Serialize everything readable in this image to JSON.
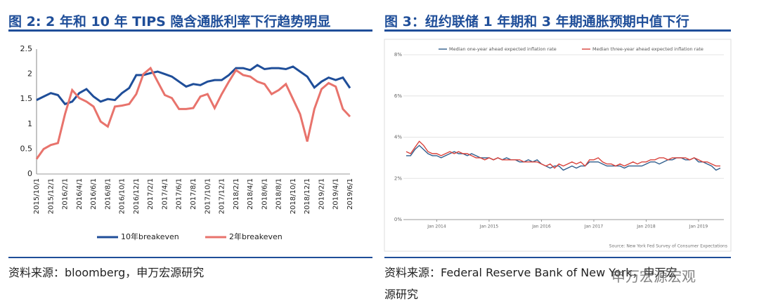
{
  "figures": [
    {
      "title": "图 2: 2 年和 10 年 TIPS 隐含通胀利率下行趋势明显",
      "source": "资料来源：bloomberg，申万宏源研究"
    },
    {
      "title": "图 3：纽约联储 1 年期和 3 年期通胀预期中值下行",
      "source": "资料来源：Federal Reserve Bank of New York，申万宏源研究"
    }
  ],
  "watermark": "申万宏源宏观",
  "chart_data": [
    {
      "type": "line",
      "legend": "bottom",
      "grid": false,
      "categories": [
        "2015/10/1",
        null,
        "2015/12/1",
        null,
        "2016/2/1",
        null,
        "2016/4/1",
        null,
        "2016/6/1",
        null,
        "2016/8/1",
        null,
        "2016/10/1",
        null,
        "2016/12/1",
        null,
        "2017/2/1",
        null,
        "2017/4/1",
        null,
        "2017/6/1",
        null,
        "2017/8/1",
        null,
        "2017/10/1",
        null,
        "2017/12/1",
        null,
        "2018/2/1",
        null,
        "2018/4/1",
        null,
        "2018/6/1",
        null,
        "2018/8/1",
        null,
        "2018/10/1",
        null,
        "2018/12/1",
        null,
        "2019/2/1",
        null,
        "2019/4/1",
        null,
        "2019/6/1"
      ],
      "series": [
        {
          "name": "10年breakeven",
          "color": "#1f4e99",
          "values": [
            1.48,
            1.55,
            1.62,
            1.58,
            1.4,
            1.45,
            1.62,
            1.7,
            1.55,
            1.45,
            1.5,
            1.48,
            1.62,
            1.72,
            1.98,
            1.98,
            2.02,
            2.05,
            2.0,
            1.95,
            1.85,
            1.75,
            1.8,
            1.78,
            1.85,
            1.88,
            1.88,
            1.98,
            2.12,
            2.12,
            2.08,
            2.18,
            2.1,
            2.12,
            2.12,
            2.1,
            2.15,
            2.05,
            1.95,
            1.73,
            1.85,
            1.93,
            1.88,
            1.93,
            1.72
          ]
        },
        {
          "name": "2年breakeven",
          "color": "#e8736c",
          "values": [
            0.3,
            0.5,
            0.58,
            0.62,
            1.2,
            1.68,
            1.52,
            1.45,
            1.35,
            1.05,
            0.95,
            1.35,
            1.37,
            1.4,
            1.6,
            2.0,
            2.12,
            1.85,
            1.58,
            1.52,
            1.3,
            1.3,
            1.32,
            1.55,
            1.6,
            1.32,
            1.6,
            1.85,
            2.08,
            1.98,
            1.95,
            1.85,
            1.8,
            1.6,
            1.68,
            1.8,
            1.5,
            1.2,
            0.65,
            1.3,
            1.7,
            1.82,
            1.75,
            1.3,
            1.15
          ]
        }
      ],
      "ylim": [
        0,
        2.5
      ],
      "yticks": [
        0,
        0.5,
        1,
        1.5,
        2,
        2.5
      ]
    },
    {
      "type": "line",
      "legend": "top",
      "grid": true,
      "source": "Source: New York Fed Survey of Consumer Expectations",
      "categories": [
        null,
        null,
        null,
        null,
        null,
        null,
        null,
        "Jan 2014",
        null,
        null,
        null,
        null,
        null,
        null,
        null,
        null,
        null,
        null,
        null,
        "Jan 2015",
        null,
        null,
        null,
        null,
        null,
        null,
        null,
        null,
        null,
        null,
        null,
        "Jan 2016",
        null,
        null,
        null,
        null,
        null,
        null,
        null,
        null,
        null,
        null,
        null,
        "Jan 2017",
        null,
        null,
        null,
        null,
        null,
        null,
        null,
        null,
        null,
        null,
        null,
        "Jan 2018",
        null,
        null,
        null,
        null,
        null,
        null,
        null,
        null,
        null,
        null,
        null,
        "Jan 2019",
        null,
        null,
        null,
        null,
        null
      ],
      "series": [
        {
          "name": "Median one-year ahead expected inflation rate",
          "color": "#2f5d8c",
          "values": [
            3.1,
            3.1,
            3.4,
            3.6,
            3.4,
            3.2,
            3.1,
            3.1,
            3.0,
            3.1,
            3.2,
            3.3,
            3.2,
            3.2,
            3.1,
            3.2,
            3.1,
            3.0,
            3.0,
            3.0,
            2.9,
            3.0,
            2.9,
            3.0,
            2.9,
            2.9,
            2.8,
            2.8,
            2.9,
            2.8,
            2.9,
            2.7,
            2.6,
            2.5,
            2.6,
            2.6,
            2.4,
            2.5,
            2.6,
            2.5,
            2.6,
            2.6,
            2.8,
            2.8,
            2.8,
            2.7,
            2.6,
            2.6,
            2.6,
            2.6,
            2.5,
            2.6,
            2.6,
            2.6,
            2.6,
            2.7,
            2.8,
            2.8,
            2.7,
            2.8,
            2.9,
            2.9,
            3.0,
            3.0,
            2.9,
            2.9,
            3.0,
            2.8,
            2.8,
            2.7,
            2.6,
            2.4,
            2.5
          ]
        },
        {
          "name": "Median three-year ahead expected inflation rate",
          "color": "#d9413a",
          "values": [
            3.3,
            3.2,
            3.5,
            3.8,
            3.6,
            3.3,
            3.2,
            3.2,
            3.1,
            3.2,
            3.3,
            3.2,
            3.3,
            3.2,
            3.2,
            3.1,
            3.0,
            3.0,
            2.9,
            3.0,
            2.9,
            3.0,
            2.9,
            2.9,
            2.9,
            2.9,
            2.9,
            2.8,
            2.8,
            2.8,
            2.8,
            2.7,
            2.6,
            2.7,
            2.5,
            2.7,
            2.6,
            2.7,
            2.8,
            2.7,
            2.8,
            2.6,
            2.9,
            2.9,
            3.0,
            2.8,
            2.7,
            2.7,
            2.6,
            2.7,
            2.6,
            2.7,
            2.8,
            2.7,
            2.8,
            2.8,
            2.9,
            2.9,
            3.0,
            3.0,
            2.9,
            3.0,
            3.0,
            3.0,
            3.0,
            2.9,
            3.0,
            2.9,
            2.8,
            2.8,
            2.7,
            2.6,
            2.6
          ]
        }
      ],
      "ylim": [
        0,
        8
      ],
      "yticks": [
        {
          "value": 0,
          "label": "0%"
        },
        {
          "value": 2,
          "label": "2%"
        },
        {
          "value": 4,
          "label": "4%"
        },
        {
          "value": 6,
          "label": "6%"
        },
        {
          "value": 8,
          "label": "8%"
        }
      ]
    }
  ]
}
